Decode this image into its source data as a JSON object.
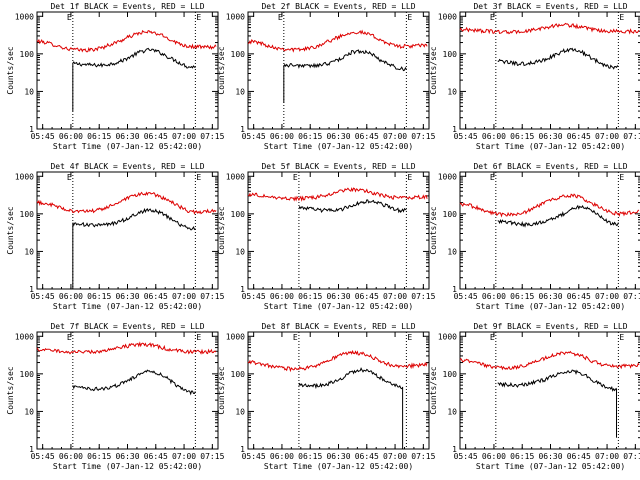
{
  "figure": {
    "xlabel": "Start Time (07-Jan-12 05:42:00)",
    "ylabel": "Counts/sec",
    "marker_label": "E",
    "x_tick_labels": [
      "05:45",
      "06:00",
      "06:15",
      "06:30",
      "06:45",
      "07:00",
      "07:15"
    ],
    "y_tick_labels": [
      "1",
      "10",
      "100",
      "1000"
    ]
  },
  "colors": {
    "events": "#000000",
    "lld": "#dd0000",
    "axes": "#000000"
  },
  "chart_data": [
    {
      "type": "line",
      "title": "Det 1f BLACK = Events, RED = LLD",
      "x_unit": "minutes since 05:42:00",
      "xlim": [
        0,
        96
      ],
      "ylim": [
        1,
        1300
      ],
      "yscale": "log",
      "markers_x": [
        19,
        84
      ],
      "x": [
        0,
        5,
        10,
        15,
        20,
        25,
        30,
        35,
        40,
        45,
        50,
        55,
        60,
        65,
        70,
        75,
        80,
        85,
        90,
        95
      ],
      "series": [
        {
          "name": "Events",
          "x_start": 19,
          "x_end": 84,
          "values": [
            null,
            null,
            null,
            null,
            55,
            52,
            50,
            50,
            55,
            65,
            85,
            115,
            130,
            110,
            80,
            60,
            45,
            null,
            null,
            null
          ]
        },
        {
          "name": "LLD",
          "values": [
            220,
            200,
            170,
            140,
            130,
            125,
            130,
            150,
            185,
            230,
            300,
            370,
            380,
            330,
            250,
            190,
            160,
            155,
            150,
            155
          ]
        }
      ],
      "spikes": [
        {
          "series": "Events",
          "x": 19,
          "value": 3
        }
      ]
    },
    {
      "type": "line",
      "title": "Det 2f BLACK = Events, RED = LLD",
      "x_unit": "minutes since 05:42:00",
      "xlim": [
        0,
        96
      ],
      "ylim": [
        1,
        1300
      ],
      "yscale": "log",
      "markers_x": [
        19,
        84
      ],
      "x": [
        0,
        5,
        10,
        15,
        20,
        25,
        30,
        35,
        40,
        45,
        50,
        55,
        60,
        65,
        70,
        75,
        80,
        85,
        90,
        95
      ],
      "series": [
        {
          "name": "Events",
          "x_start": 19,
          "x_end": 84,
          "values": [
            null,
            null,
            null,
            null,
            50,
            50,
            48,
            48,
            52,
            60,
            78,
            110,
            120,
            100,
            70,
            52,
            40,
            null,
            null,
            null
          ]
        },
        {
          "name": "LLD",
          "values": [
            215,
            205,
            170,
            145,
            135,
            130,
            135,
            150,
            190,
            240,
            310,
            380,
            375,
            320,
            240,
            180,
            160,
            160,
            165,
            170
          ]
        }
      ],
      "spikes": [
        {
          "series": "Events",
          "x": 19,
          "value": 5
        }
      ]
    },
    {
      "type": "line",
      "title": "Det 3f BLACK = Events, RED = LLD",
      "x_unit": "minutes since 05:42:00",
      "xlim": [
        0,
        96
      ],
      "ylim": [
        1,
        1300
      ],
      "yscale": "log",
      "markers_x": [
        19,
        84
      ],
      "x": [
        0,
        5,
        10,
        15,
        20,
        25,
        30,
        35,
        40,
        45,
        50,
        55,
        60,
        65,
        70,
        75,
        80,
        85,
        90,
        95
      ],
      "series": [
        {
          "name": "Events",
          "x_start": 20,
          "x_end": 84,
          "values": [
            null,
            null,
            null,
            null,
            65,
            60,
            55,
            55,
            60,
            70,
            90,
            120,
            130,
            110,
            75,
            55,
            45,
            null,
            null,
            null
          ]
        },
        {
          "name": "LLD",
          "values": [
            450,
            440,
            420,
            400,
            390,
            380,
            385,
            400,
            440,
            500,
            560,
            600,
            570,
            500,
            440,
            410,
            400,
            400,
            400,
            400
          ]
        }
      ],
      "spikes": []
    },
    {
      "type": "line",
      "title": "Det 4f BLACK = Events, RED = LLD",
      "x_unit": "minutes since 05:42:00",
      "xlim": [
        0,
        96
      ],
      "ylim": [
        1,
        1300
      ],
      "yscale": "log",
      "markers_x": [
        19,
        84
      ],
      "x": [
        0,
        5,
        10,
        15,
        20,
        25,
        30,
        35,
        40,
        45,
        50,
        55,
        60,
        65,
        70,
        75,
        80,
        85,
        90,
        95
      ],
      "series": [
        {
          "name": "Events",
          "x_start": 19,
          "x_end": 84,
          "values": [
            null,
            null,
            null,
            null,
            55,
            52,
            50,
            50,
            55,
            65,
            85,
            115,
            130,
            110,
            80,
            55,
            40,
            null,
            null,
            null
          ]
        },
        {
          "name": "LLD",
          "values": [
            200,
            190,
            160,
            130,
            120,
            115,
            120,
            135,
            170,
            220,
            280,
            340,
            350,
            300,
            220,
            160,
            120,
            110,
            115,
            125
          ]
        }
      ],
      "spikes": [
        {
          "series": "Events",
          "x": 19,
          "value": 1
        }
      ]
    },
    {
      "type": "line",
      "title": "Det 5f BLACK = Events, RED = LLD",
      "x_unit": "minutes since 05:42:00",
      "xlim": [
        0,
        96
      ],
      "ylim": [
        1,
        1300
      ],
      "yscale": "log",
      "markers_x": [
        27,
        84
      ],
      "x": [
        0,
        5,
        10,
        15,
        20,
        25,
        30,
        35,
        40,
        45,
        50,
        55,
        60,
        65,
        70,
        75,
        80,
        85,
        90,
        95
      ],
      "series": [
        {
          "name": "Events",
          "x_start": 27,
          "x_end": 84,
          "values": [
            null,
            null,
            null,
            null,
            null,
            null,
            145,
            130,
            125,
            125,
            135,
            165,
            200,
            220,
            190,
            150,
            125,
            null,
            null,
            null
          ]
        },
        {
          "name": "LLD",
          "values": [
            330,
            320,
            290,
            270,
            260,
            255,
            260,
            270,
            300,
            350,
            410,
            450,
            440,
            380,
            320,
            280,
            270,
            270,
            275,
            280
          ]
        }
      ],
      "spikes": []
    },
    {
      "type": "line",
      "title": "Det 6f BLACK = Events, RED = LLD",
      "x_unit": "minutes since 05:42:00",
      "xlim": [
        0,
        96
      ],
      "ylim": [
        1,
        1300
      ],
      "yscale": "log",
      "markers_x": [
        19,
        84
      ],
      "x": [
        0,
        5,
        10,
        15,
        20,
        25,
        30,
        35,
        40,
        45,
        50,
        55,
        60,
        65,
        70,
        75,
        80,
        85,
        90,
        95
      ],
      "series": [
        {
          "name": "Events",
          "x_start": 20,
          "x_end": 84,
          "values": [
            null,
            null,
            null,
            null,
            65,
            60,
            55,
            52,
            55,
            65,
            80,
            100,
            140,
            160,
            120,
            80,
            55,
            null,
            null,
            null
          ]
        },
        {
          "name": "LLD",
          "values": [
            180,
            170,
            140,
            110,
            100,
            95,
            100,
            115,
            150,
            200,
            250,
            290,
            310,
            260,
            190,
            140,
            110,
            100,
            110,
            120
          ]
        }
      ],
      "spikes": []
    },
    {
      "type": "line",
      "title": "Det 7f BLACK = Events, RED = LLD",
      "x_unit": "minutes since 05:42:00",
      "xlim": [
        0,
        96
      ],
      "ylim": [
        1,
        1300
      ],
      "yscale": "log",
      "markers_x": [
        19,
        84
      ],
      "x": [
        0,
        5,
        10,
        15,
        20,
        25,
        30,
        35,
        40,
        45,
        50,
        55,
        60,
        65,
        70,
        75,
        80,
        85,
        90,
        95
      ],
      "series": [
        {
          "name": "Events",
          "x_start": 19,
          "x_end": 84,
          "values": [
            null,
            null,
            null,
            null,
            45,
            42,
            40,
            40,
            45,
            55,
            75,
            100,
            125,
            100,
            70,
            45,
            32,
            null,
            null,
            null
          ]
        },
        {
          "name": "LLD",
          "values": [
            450,
            430,
            410,
            390,
            380,
            380,
            390,
            410,
            450,
            510,
            580,
            620,
            590,
            520,
            450,
            410,
            390,
            390,
            390,
            400
          ]
        }
      ],
      "spikes": []
    },
    {
      "type": "line",
      "title": "Det 8f BLACK = Events, RED = LLD",
      "x_unit": "minutes since 05:42:00",
      "xlim": [
        0,
        96
      ],
      "ylim": [
        1,
        1300
      ],
      "yscale": "log",
      "markers_x": [
        27,
        84
      ],
      "x": [
        0,
        5,
        10,
        15,
        20,
        25,
        30,
        35,
        40,
        45,
        50,
        55,
        60,
        65,
        70,
        75,
        80,
        85,
        90,
        95
      ],
      "series": [
        {
          "name": "Events",
          "x_start": 27,
          "x_end": 82,
          "values": [
            null,
            null,
            null,
            null,
            null,
            null,
            50,
            48,
            50,
            60,
            80,
            110,
            130,
            110,
            80,
            55,
            45,
            null,
            null,
            null
          ]
        },
        {
          "name": "LLD",
          "values": [
            210,
            195,
            170,
            150,
            140,
            135,
            140,
            160,
            200,
            260,
            330,
            370,
            350,
            290,
            220,
            175,
            160,
            160,
            170,
            180
          ]
        }
      ],
      "spikes": [
        {
          "series": "Events",
          "x": 82,
          "value": 1
        }
      ]
    },
    {
      "type": "line",
      "title": "Det 9f BLACK = Events, RED = LLD",
      "x_unit": "minutes since 05:42:00",
      "xlim": [
        0,
        96
      ],
      "ylim": [
        1,
        1300
      ],
      "yscale": "log",
      "markers_x": [
        19,
        84
      ],
      "x": [
        0,
        5,
        10,
        15,
        20,
        25,
        30,
        35,
        40,
        45,
        50,
        55,
        60,
        65,
        70,
        75,
        80,
        85,
        90,
        95
      ],
      "series": [
        {
          "name": "Events",
          "x_start": 20,
          "x_end": 83,
          "values": [
            null,
            null,
            null,
            null,
            55,
            52,
            50,
            52,
            60,
            70,
            90,
            110,
            120,
            100,
            70,
            50,
            40,
            null,
            null,
            null
          ]
        },
        {
          "name": "LLD",
          "values": [
            230,
            220,
            190,
            160,
            150,
            145,
            150,
            170,
            210,
            260,
            320,
            360,
            350,
            290,
            220,
            180,
            160,
            160,
            165,
            170
          ]
        }
      ],
      "spikes": [
        {
          "series": "Events",
          "x": 83,
          "value": 2
        }
      ]
    }
  ]
}
